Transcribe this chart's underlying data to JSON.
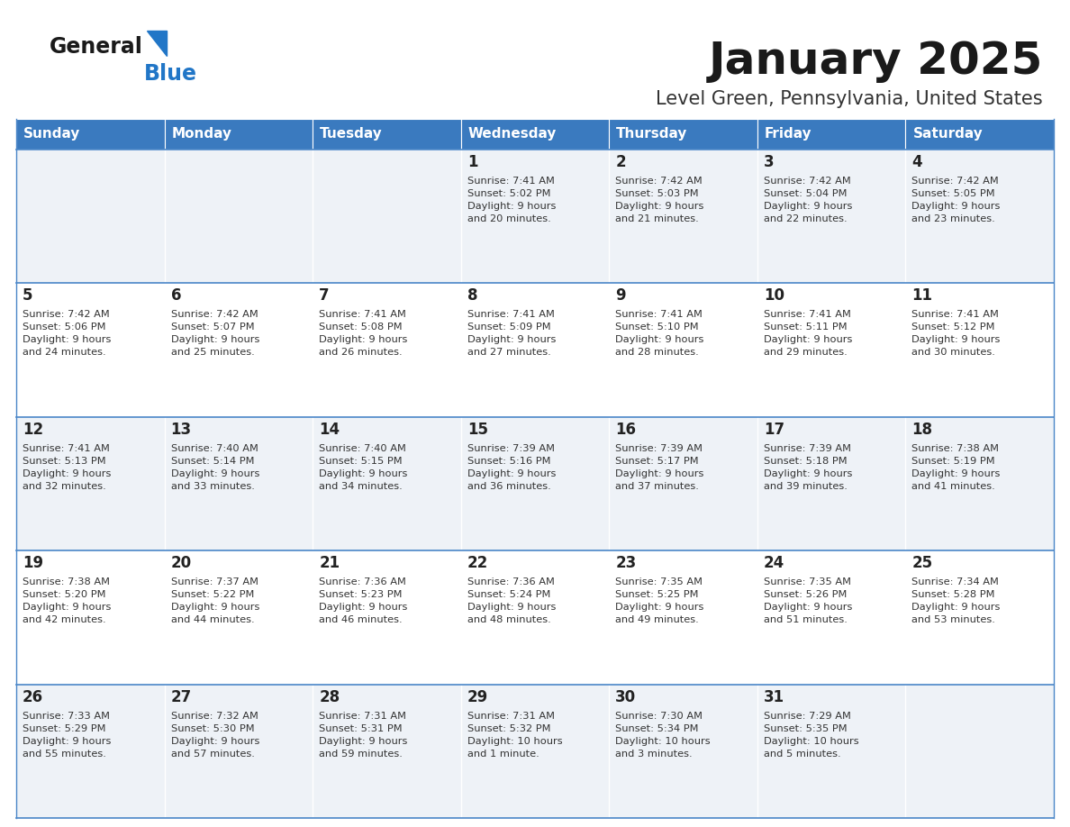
{
  "title": "January 2025",
  "subtitle": "Level Green, Pennsylvania, United States",
  "days_of_week": [
    "Sunday",
    "Monday",
    "Tuesday",
    "Wednesday",
    "Thursday",
    "Friday",
    "Saturday"
  ],
  "header_bg": "#3a7abf",
  "header_text": "#ffffff",
  "row_bg_even": "#eef2f7",
  "row_bg_odd": "#ffffff",
  "cell_border": "#4a86c8",
  "day_num_color": "#222222",
  "info_text_color": "#333333",
  "title_color": "#1a1a1a",
  "subtitle_color": "#333333",
  "logo_general_color": "#1a1a1a",
  "logo_blue_color": "#2176c7",
  "calendar": [
    [
      {
        "day": "",
        "info": ""
      },
      {
        "day": "",
        "info": ""
      },
      {
        "day": "",
        "info": ""
      },
      {
        "day": "1",
        "info": "Sunrise: 7:41 AM\nSunset: 5:02 PM\nDaylight: 9 hours\nand 20 minutes."
      },
      {
        "day": "2",
        "info": "Sunrise: 7:42 AM\nSunset: 5:03 PM\nDaylight: 9 hours\nand 21 minutes."
      },
      {
        "day": "3",
        "info": "Sunrise: 7:42 AM\nSunset: 5:04 PM\nDaylight: 9 hours\nand 22 minutes."
      },
      {
        "day": "4",
        "info": "Sunrise: 7:42 AM\nSunset: 5:05 PM\nDaylight: 9 hours\nand 23 minutes."
      }
    ],
    [
      {
        "day": "5",
        "info": "Sunrise: 7:42 AM\nSunset: 5:06 PM\nDaylight: 9 hours\nand 24 minutes."
      },
      {
        "day": "6",
        "info": "Sunrise: 7:42 AM\nSunset: 5:07 PM\nDaylight: 9 hours\nand 25 minutes."
      },
      {
        "day": "7",
        "info": "Sunrise: 7:41 AM\nSunset: 5:08 PM\nDaylight: 9 hours\nand 26 minutes."
      },
      {
        "day": "8",
        "info": "Sunrise: 7:41 AM\nSunset: 5:09 PM\nDaylight: 9 hours\nand 27 minutes."
      },
      {
        "day": "9",
        "info": "Sunrise: 7:41 AM\nSunset: 5:10 PM\nDaylight: 9 hours\nand 28 minutes."
      },
      {
        "day": "10",
        "info": "Sunrise: 7:41 AM\nSunset: 5:11 PM\nDaylight: 9 hours\nand 29 minutes."
      },
      {
        "day": "11",
        "info": "Sunrise: 7:41 AM\nSunset: 5:12 PM\nDaylight: 9 hours\nand 30 minutes."
      }
    ],
    [
      {
        "day": "12",
        "info": "Sunrise: 7:41 AM\nSunset: 5:13 PM\nDaylight: 9 hours\nand 32 minutes."
      },
      {
        "day": "13",
        "info": "Sunrise: 7:40 AM\nSunset: 5:14 PM\nDaylight: 9 hours\nand 33 minutes."
      },
      {
        "day": "14",
        "info": "Sunrise: 7:40 AM\nSunset: 5:15 PM\nDaylight: 9 hours\nand 34 minutes."
      },
      {
        "day": "15",
        "info": "Sunrise: 7:39 AM\nSunset: 5:16 PM\nDaylight: 9 hours\nand 36 minutes."
      },
      {
        "day": "16",
        "info": "Sunrise: 7:39 AM\nSunset: 5:17 PM\nDaylight: 9 hours\nand 37 minutes."
      },
      {
        "day": "17",
        "info": "Sunrise: 7:39 AM\nSunset: 5:18 PM\nDaylight: 9 hours\nand 39 minutes."
      },
      {
        "day": "18",
        "info": "Sunrise: 7:38 AM\nSunset: 5:19 PM\nDaylight: 9 hours\nand 41 minutes."
      }
    ],
    [
      {
        "day": "19",
        "info": "Sunrise: 7:38 AM\nSunset: 5:20 PM\nDaylight: 9 hours\nand 42 minutes."
      },
      {
        "day": "20",
        "info": "Sunrise: 7:37 AM\nSunset: 5:22 PM\nDaylight: 9 hours\nand 44 minutes."
      },
      {
        "day": "21",
        "info": "Sunrise: 7:36 AM\nSunset: 5:23 PM\nDaylight: 9 hours\nand 46 minutes."
      },
      {
        "day": "22",
        "info": "Sunrise: 7:36 AM\nSunset: 5:24 PM\nDaylight: 9 hours\nand 48 minutes."
      },
      {
        "day": "23",
        "info": "Sunrise: 7:35 AM\nSunset: 5:25 PM\nDaylight: 9 hours\nand 49 minutes."
      },
      {
        "day": "24",
        "info": "Sunrise: 7:35 AM\nSunset: 5:26 PM\nDaylight: 9 hours\nand 51 minutes."
      },
      {
        "day": "25",
        "info": "Sunrise: 7:34 AM\nSunset: 5:28 PM\nDaylight: 9 hours\nand 53 minutes."
      }
    ],
    [
      {
        "day": "26",
        "info": "Sunrise: 7:33 AM\nSunset: 5:29 PM\nDaylight: 9 hours\nand 55 minutes."
      },
      {
        "day": "27",
        "info": "Sunrise: 7:32 AM\nSunset: 5:30 PM\nDaylight: 9 hours\nand 57 minutes."
      },
      {
        "day": "28",
        "info": "Sunrise: 7:31 AM\nSunset: 5:31 PM\nDaylight: 9 hours\nand 59 minutes."
      },
      {
        "day": "29",
        "info": "Sunrise: 7:31 AM\nSunset: 5:32 PM\nDaylight: 10 hours\nand 1 minute."
      },
      {
        "day": "30",
        "info": "Sunrise: 7:30 AM\nSunset: 5:34 PM\nDaylight: 10 hours\nand 3 minutes."
      },
      {
        "day": "31",
        "info": "Sunrise: 7:29 AM\nSunset: 5:35 PM\nDaylight: 10 hours\nand 5 minutes."
      },
      {
        "day": "",
        "info": ""
      }
    ]
  ]
}
